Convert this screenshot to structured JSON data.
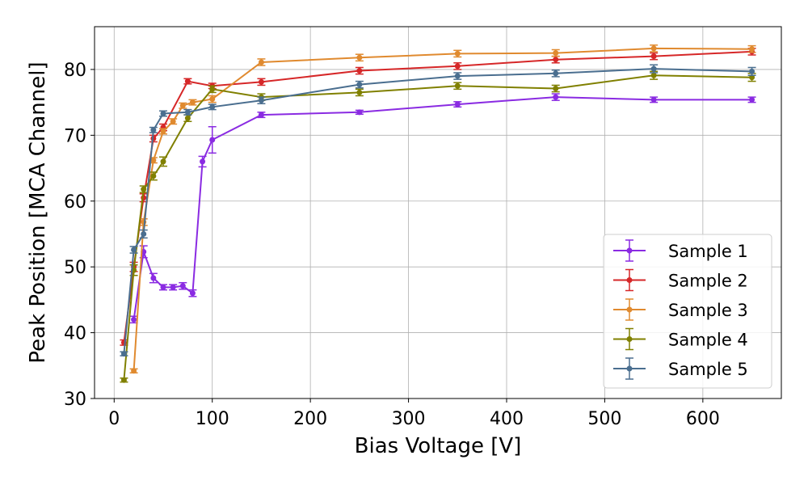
{
  "chart_data": {
    "type": "line",
    "title": "",
    "xlabel": "Bias Voltage [V]",
    "ylabel": "Peak Position [MCA Channel]",
    "xlim": [
      -20,
      680
    ],
    "ylim": [
      30,
      86.5
    ],
    "xticks": [
      0,
      100,
      200,
      300,
      400,
      500,
      600
    ],
    "yticks": [
      30,
      40,
      50,
      60,
      70,
      80
    ],
    "grid": true,
    "legend_position": "lower-right",
    "series": [
      {
        "name": "Sample 1",
        "color": "#8a2be2",
        "x": [
          20,
          30,
          40,
          50,
          60,
          70,
          80,
          90,
          100,
          150,
          250,
          350,
          450,
          550,
          650
        ],
        "y": [
          42,
          52.3,
          48.3,
          46.9,
          46.9,
          47.1,
          46.0,
          66.0,
          69.3,
          73.1,
          73.5,
          74.7,
          75.8,
          75.4,
          75.4
        ],
        "err": [
          0.5,
          0.9,
          0.7,
          0.4,
          0.4,
          0.5,
          0.5,
          0.8,
          2.0,
          0.4,
          0.3,
          0.4,
          0.5,
          0.4,
          0.4
        ]
      },
      {
        "name": "Sample 2",
        "color": "#d62728",
        "x": [
          10,
          20,
          30,
          40,
          50,
          75,
          100,
          150,
          250,
          350,
          450,
          550,
          650
        ],
        "y": [
          38.5,
          50.0,
          60.5,
          69.5,
          71.2,
          78.2,
          77.5,
          78.1,
          79.8,
          80.5,
          81.5,
          82.0,
          82.7
        ],
        "err": [
          0.4,
          0.7,
          0.6,
          0.5,
          0.5,
          0.4,
          0.4,
          0.5,
          0.5,
          0.5,
          0.5,
          0.5,
          0.5
        ]
      },
      {
        "name": "Sample 3",
        "color": "#e08a2f",
        "x": [
          20,
          30,
          40,
          50,
          60,
          70,
          80,
          100,
          150,
          250,
          350,
          450,
          550,
          650
        ],
        "y": [
          34.2,
          56.8,
          66.2,
          70.6,
          72.1,
          74.5,
          75.0,
          75.5,
          81.1,
          81.8,
          82.4,
          82.5,
          83.2,
          83.1
        ],
        "err": [
          0.3,
          0.5,
          0.4,
          0.4,
          0.4,
          0.4,
          0.4,
          0.5,
          0.5,
          0.5,
          0.5,
          0.5,
          0.5,
          0.5
        ]
      },
      {
        "name": "Sample 4",
        "color": "#808000",
        "x": [
          10,
          20,
          30,
          40,
          50,
          75,
          100,
          150,
          250,
          350,
          450,
          550,
          650
        ],
        "y": [
          32.8,
          49.5,
          61.8,
          63.8,
          66.0,
          72.6,
          77.0,
          75.8,
          76.5,
          77.5,
          77.1,
          79.1,
          78.8
        ],
        "err": [
          0.3,
          0.8,
          0.5,
          0.6,
          0.7,
          0.5,
          0.5,
          0.5,
          0.5,
          0.5,
          0.5,
          0.6,
          0.6
        ]
      },
      {
        "name": "Sample 5",
        "color": "#4a6e8f",
        "x": [
          10,
          20,
          30,
          40,
          50,
          75,
          100,
          150,
          250,
          350,
          450,
          550,
          650
        ],
        "y": [
          36.8,
          52.6,
          55.0,
          70.8,
          73.3,
          73.5,
          74.3,
          75.3,
          77.7,
          79.0,
          79.4,
          80.1,
          79.7
        ],
        "err": [
          0.3,
          0.5,
          0.6,
          0.4,
          0.4,
          0.4,
          0.4,
          0.5,
          0.5,
          0.5,
          0.5,
          0.6,
          0.6
        ]
      }
    ]
  }
}
